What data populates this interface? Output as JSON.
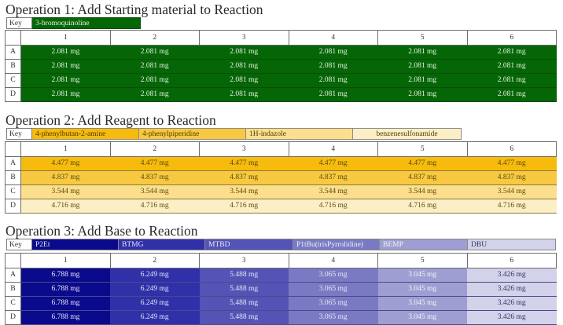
{
  "colors": {
    "green": "#056605",
    "reagent_row": [
      "#f6bb0c",
      "#f8c940",
      "#fbdf8c",
      "#fcefc6"
    ],
    "reagent_key": [
      "#f6bb0c",
      "#f8c940",
      "#fbdf8c",
      "#fcefc6"
    ],
    "base_col": [
      "#0a0a8c",
      "#3030a8",
      "#5454b6",
      "#7a7ac4",
      "#9e9ed2",
      "#d2d2ea"
    ],
    "base_text": [
      "#e6e6f6",
      "#e6e6f6",
      "#e6e6f6",
      "#e6e6f6",
      "#f2f2fa",
      "#333366"
    ]
  },
  "operations": [
    {
      "title": "Operation 1: Add Starting material to Reaction",
      "key_label": "Key",
      "key": [
        "3-bromoquinoline"
      ],
      "columns": [
        "1",
        "2",
        "3",
        "4",
        "5",
        "6"
      ],
      "rows": [
        {
          "label": "A",
          "values": [
            "2.081 mg",
            "2.081 mg",
            "2.081 mg",
            "2.081 mg",
            "2.081 mg",
            "2.081 mg"
          ]
        },
        {
          "label": "B",
          "values": [
            "2.081 mg",
            "2.081 mg",
            "2.081 mg",
            "2.081 mg",
            "2.081 mg",
            "2.081 mg"
          ]
        },
        {
          "label": "C",
          "values": [
            "2.081 mg",
            "2.081 mg",
            "2.081 mg",
            "2.081 mg",
            "2.081 mg",
            "2.081 mg"
          ]
        },
        {
          "label": "D",
          "values": [
            "2.081 mg",
            "2.081 mg",
            "2.081 mg",
            "2.081 mg",
            "2.081 mg",
            "2.081 mg"
          ]
        }
      ]
    },
    {
      "title": "Operation 2: Add Reagent to Reaction",
      "key_label": "Key",
      "key": [
        "4-phenylbutan-2-amine",
        "4-phenylpiperidine",
        "1H-indazole",
        "benzenesulfonamide"
      ],
      "columns": [
        "1",
        "2",
        "3",
        "4",
        "5",
        "6"
      ],
      "rows": [
        {
          "label": "A",
          "values": [
            "4.477 mg",
            "4.477 mg",
            "4.477 mg",
            "4.477 mg",
            "4.477 mg",
            "4.477 mg"
          ]
        },
        {
          "label": "B",
          "values": [
            "4.837 mg",
            "4.837 mg",
            "4.837 mg",
            "4.837 mg",
            "4.837 mg",
            "4.837 mg"
          ]
        },
        {
          "label": "C",
          "values": [
            "3.544 mg",
            "3.544 mg",
            "3.544 mg",
            "3.544 mg",
            "3.544 mg",
            "3.544 mg"
          ]
        },
        {
          "label": "D",
          "values": [
            "4.716 mg",
            "4.716 mg",
            "4.716 mg",
            "4.716 mg",
            "4.716 mg",
            "4.716 mg"
          ]
        }
      ]
    },
    {
      "title": "Operation 3: Add Base to Reaction",
      "key_label": "Key",
      "key": [
        "P2Et",
        "BTMG",
        "MTBD",
        "P1tBu(trisPyrrolidine)",
        "BEMP",
        "DBU"
      ],
      "columns": [
        "1",
        "2",
        "3",
        "4",
        "5",
        "6"
      ],
      "rows": [
        {
          "label": "A",
          "values": [
            "6.788 mg",
            "6.249 mg",
            "5.488 mg",
            "3.065 mg",
            "3.045 mg",
            "3.426 mg"
          ]
        },
        {
          "label": "B",
          "values": [
            "6.788 mg",
            "6.249 mg",
            "5.488 mg",
            "3.065 mg",
            "3.045 mg",
            "3.426 mg"
          ]
        },
        {
          "label": "C",
          "values": [
            "6.788 mg",
            "6.249 mg",
            "5.488 mg",
            "3.065 mg",
            "3.045 mg",
            "3.426 mg"
          ]
        },
        {
          "label": "D",
          "values": [
            "6.788 mg",
            "6.249 mg",
            "5.488 mg",
            "3.065 mg",
            "3.045 mg",
            "3.426 mg"
          ]
        }
      ]
    }
  ]
}
